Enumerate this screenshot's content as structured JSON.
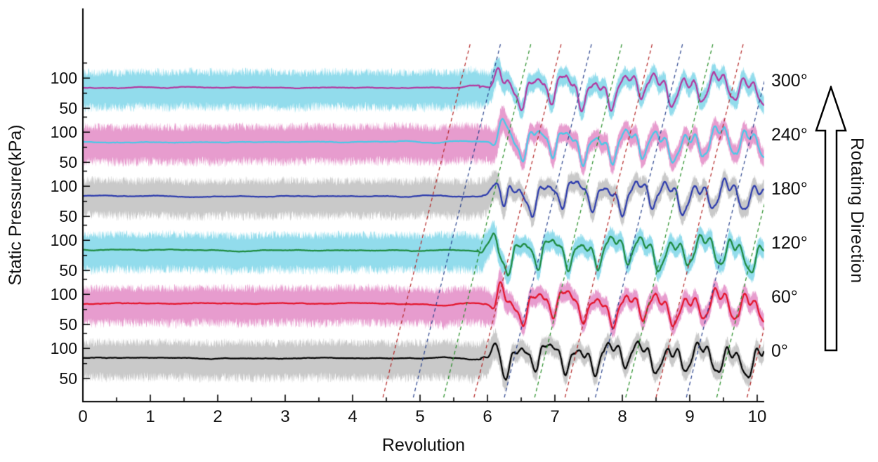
{
  "chart_data": {
    "type": "line",
    "title": "",
    "xlabel": "Revolution",
    "ylabel": "Static Pressure(kPa)",
    "right_axis_label": "Rotating Direction",
    "background": "#ffffff",
    "x_range": [
      0,
      10.1
    ],
    "x_ticks": [
      0,
      1,
      2,
      3,
      4,
      5,
      6,
      7,
      8,
      9,
      10
    ],
    "x_tick_labels": [
      "0",
      "1",
      "2",
      "3",
      "4",
      "5",
      "6",
      "7",
      "8",
      "9",
      "10"
    ],
    "x_minor_tick_interval": 0.5,
    "y_tick_values_per_trace": [
      100,
      50
    ],
    "y_tick_labels_per_trace": [
      "100",
      "50"
    ],
    "y_minor_tick_values_per_trace": [
      125,
      75
    ],
    "pressure_baseline_kpa": 84,
    "band_halfwidth_kpa_pre_stall": {
      "upper": 33,
      "lower": 41
    },
    "band_halfwidth_kpa_post_stall": 19,
    "oscillation": {
      "period_rev": 0.45,
      "amplitude_kpa": 30,
      "onset_spike_kpa": 36
    },
    "series": [
      {
        "angle_label": "0°",
        "angle_deg": 0,
        "line_color": "#000000",
        "band_color": "#c9c9c9",
        "stall_onset_rev": 5.9
      },
      {
        "angle_label": "60°",
        "angle_deg": 60,
        "line_color": "#e4132a",
        "band_color": "#e79cce",
        "stall_onset_rev": 5.95
      },
      {
        "angle_label": "120°",
        "angle_deg": 120,
        "line_color": "#1d8a3e",
        "band_color": "#92dcec",
        "stall_onset_rev": 5.85
      },
      {
        "angle_label": "180°",
        "angle_deg": 180,
        "line_color": "#2b3aad",
        "band_color": "#c9c9c9",
        "stall_onset_rev": 5.92
      },
      {
        "angle_label": "240°",
        "angle_deg": 240,
        "line_color": "#49c9e8",
        "band_color": "#e79cce",
        "stall_onset_rev": 6.0
      },
      {
        "angle_label": "300°",
        "angle_deg": 300,
        "line_color": "#b4379f",
        "band_color": "#92dcec",
        "stall_onset_rev": 5.88
      }
    ],
    "stall_propagation_lines": {
      "colors": [
        "#b22222",
        "#27408b",
        "#228b22"
      ],
      "rev_at_bottom": [
        4.45,
        4.9,
        5.35,
        5.8,
        6.25,
        6.7,
        7.15,
        7.6,
        8.05,
        8.5,
        8.95,
        9.4,
        9.85
      ],
      "rev_shift_over_height": 1.3,
      "dash": [
        5,
        4
      ]
    },
    "axis_color": "#000000",
    "legend": "none",
    "grid": "off"
  }
}
